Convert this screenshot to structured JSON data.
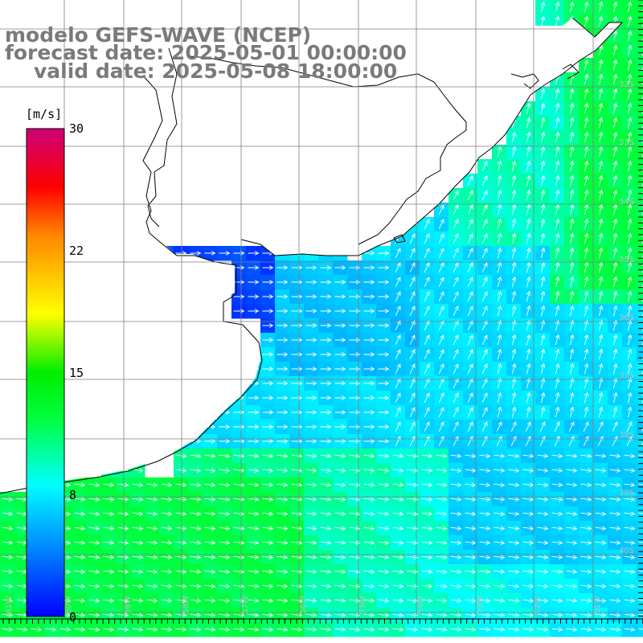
{
  "title": {
    "line1": "modelo GEFS-WAVE (NCEP)",
    "line2": "forecast date: 2025-05-01 00:00:00",
    "line3": "valid date: 2025-05-08 18:00:00"
  },
  "colorbar": {
    "unit": "[m/s]",
    "ticks": [
      "30",
      "22",
      "15",
      "8",
      "0"
    ],
    "range": [
      0,
      30
    ],
    "colors": [
      "#0000ff",
      "#00aaff",
      "#00ffff",
      "#00ff00",
      "#ffff00",
      "#ff8800",
      "#ff0000",
      "#cc0077"
    ]
  },
  "map": {
    "variable": "wind speed and direction",
    "lat_labels": [
      "32S",
      "33S",
      "34S",
      "35S",
      "36S",
      "37S",
      "38S",
      "39S",
      "40S"
    ],
    "lon_labels": [
      "61W",
      "60W",
      "59W",
      "58W",
      "57W",
      "56W",
      "55W",
      "54W",
      "53W",
      "52W",
      "51W"
    ],
    "grid": true
  }
}
